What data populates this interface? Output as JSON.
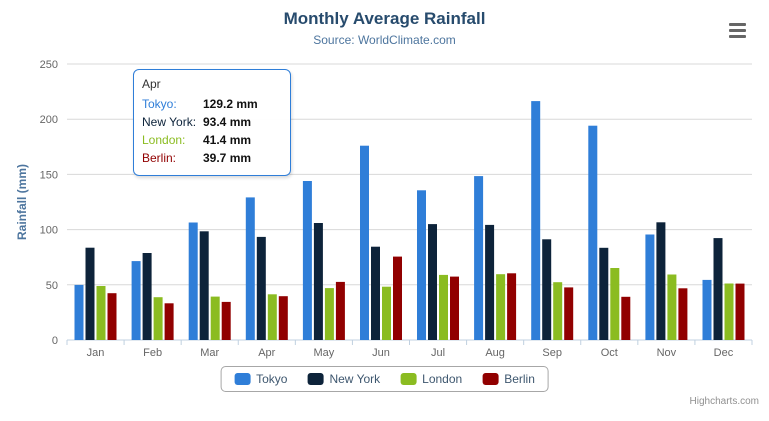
{
  "header": {
    "title": "Monthly Average Rainfall",
    "subtitle": "Source: WorldClimate.com"
  },
  "chart_data": {
    "type": "bar",
    "title": "Monthly Average Rainfall",
    "subtitle": "Source: WorldClimate.com",
    "categories": [
      "Jan",
      "Feb",
      "Mar",
      "Apr",
      "May",
      "Jun",
      "Jul",
      "Aug",
      "Sep",
      "Oct",
      "Nov",
      "Dec"
    ],
    "series": [
      {
        "name": "Tokyo",
        "color": "#2f7ed8",
        "values": [
          49.9,
          71.5,
          106.4,
          129.2,
          144.0,
          176.0,
          135.6,
          148.5,
          216.4,
          194.1,
          95.6,
          54.4
        ]
      },
      {
        "name": "New York",
        "color": "#0d233a",
        "values": [
          83.6,
          78.8,
          98.5,
          93.4,
          106.0,
          84.5,
          105.0,
          104.3,
          91.2,
          83.5,
          106.6,
          92.3
        ]
      },
      {
        "name": "London",
        "color": "#8bbc21",
        "values": [
          48.9,
          38.8,
          39.3,
          41.4,
          47.0,
          48.3,
          59.0,
          59.6,
          52.4,
          65.2,
          59.3,
          51.2
        ]
      },
      {
        "name": "Berlin",
        "color": "#910000",
        "values": [
          42.4,
          33.2,
          34.5,
          39.7,
          52.6,
          75.5,
          57.4,
          60.4,
          47.6,
          39.1,
          46.8,
          51.1
        ]
      }
    ],
    "xlabel": "",
    "ylabel": "Rainfall (mm)",
    "ylim": [
      0,
      250
    ],
    "yticks": [
      0,
      50,
      100,
      150,
      200,
      250
    ],
    "grid": true,
    "legend_position": "bottom"
  },
  "tooltip": {
    "category": "Apr",
    "border_color": "#2f7ed8",
    "rows": [
      {
        "label": "Tokyo:",
        "value": "129.2 mm",
        "color": "#2f7ed8"
      },
      {
        "label": "New York:",
        "value": "93.4 mm",
        "color": "#0d233a"
      },
      {
        "label": "London:",
        "value": "41.4 mm",
        "color": "#8bbc21"
      },
      {
        "label": "Berlin:",
        "value": "39.7 mm",
        "color": "#910000"
      }
    ]
  },
  "credits": {
    "label": "Highcharts.com"
  },
  "colors": {
    "title": "#274b6d",
    "subtitle": "#4d759e",
    "axis_label": "#666666",
    "grid": "#d8d8d8",
    "axis_line": "#c0d0e0",
    "legend_text": "#3e576f"
  }
}
